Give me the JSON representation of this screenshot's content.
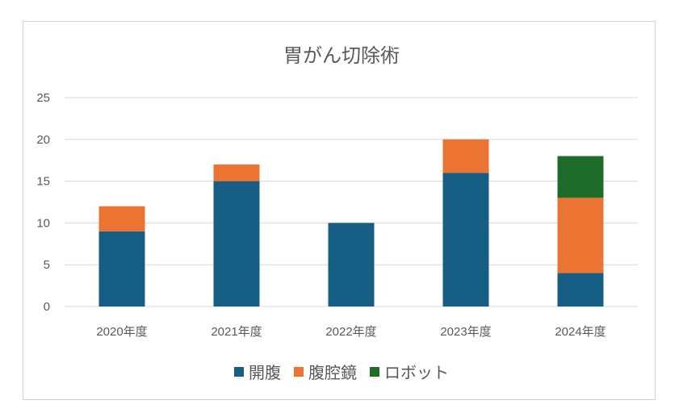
{
  "chart_data": {
    "type": "bar",
    "stacked": true,
    "title": "胃がん切除術",
    "categories": [
      "2020年度",
      "2021年度",
      "2022年度",
      "2023年度",
      "2024年度"
    ],
    "series": [
      {
        "name": "開腹",
        "color": "#165e83",
        "values": [
          9,
          15,
          10,
          16,
          4
        ]
      },
      {
        "name": "腹腔鏡",
        "color": "#ec7433",
        "values": [
          3,
          2,
          0,
          4,
          9
        ]
      },
      {
        "name": "ロボット",
        "color": "#1e6b2a",
        "values": [
          0,
          0,
          0,
          0,
          5
        ]
      }
    ],
    "ylim": [
      0,
      25
    ],
    "yticks": [
      0,
      5,
      10,
      15,
      20,
      25
    ],
    "grid": true,
    "legend_position": "bottom"
  }
}
